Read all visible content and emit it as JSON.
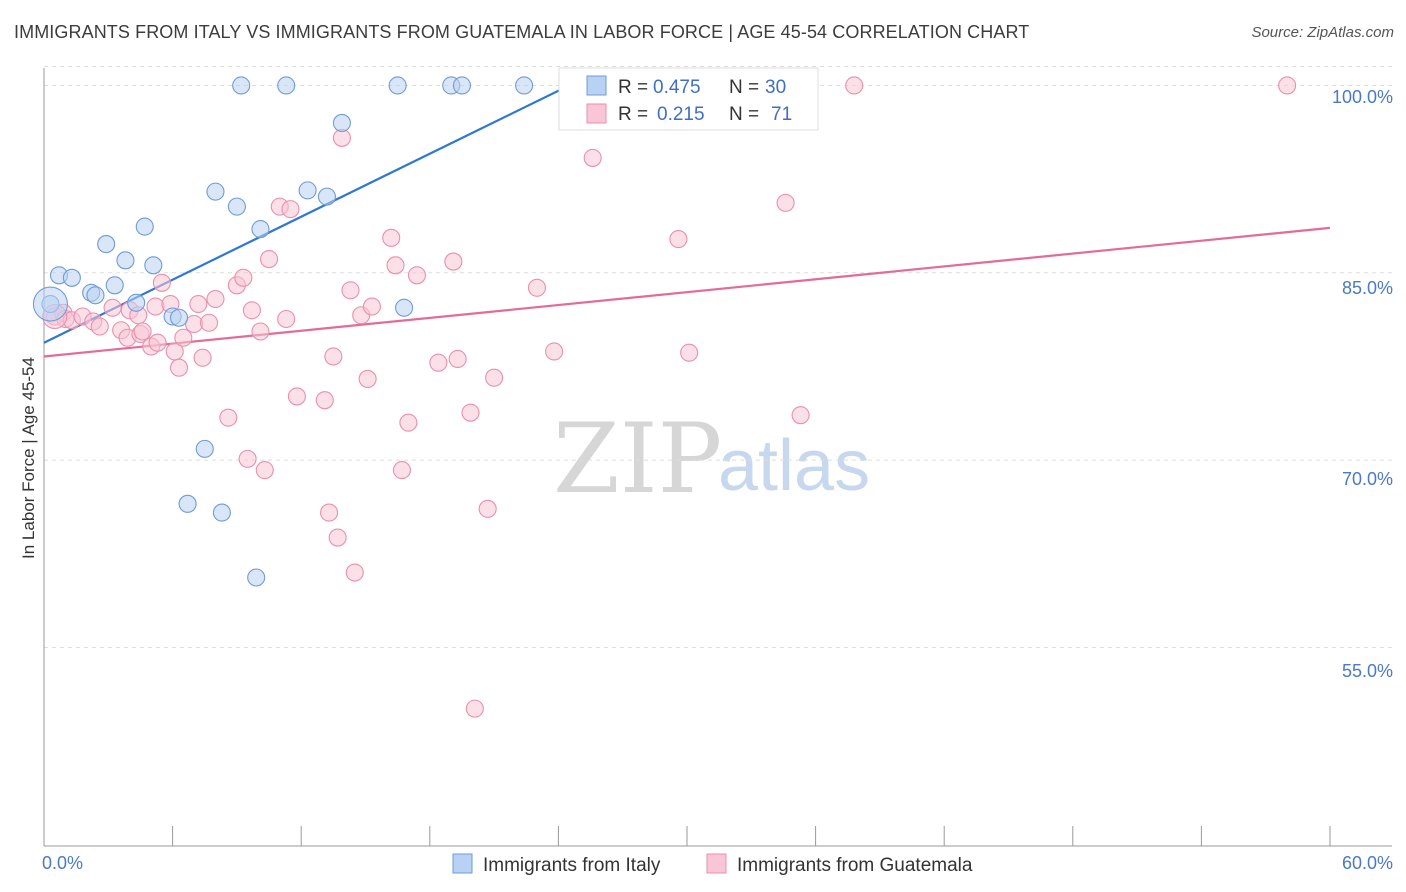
{
  "title": "IMMIGRANTS FROM ITALY VS IMMIGRANTS FROM GUATEMALA IN LABOR FORCE | AGE 45-54 CORRELATION CHART",
  "source": "Source: ZipAtlas.com",
  "watermark": {
    "zip": "ZIP",
    "atlas": "atlas"
  },
  "colors": {
    "italy_fill": "#b9d1f3",
    "italy_stroke": "#6f9bd8",
    "italy_line": "#2f78d0",
    "guatemala_fill": "#f8c6d6",
    "guatemala_stroke": "#ea8fae",
    "guatemala_line": "#e46a98",
    "grid": "#dddddd",
    "axis": "#999999"
  },
  "legend": {
    "rows": [
      {
        "r_label": "R =",
        "r_value": "0.475",
        "n_label": "N =",
        "n_value": "30"
      },
      {
        "r_label": "R =",
        "r_value": "0.215",
        "n_label": "N =",
        "n_value": "71"
      }
    ]
  },
  "chart_data": {
    "type": "scatter",
    "title": "IMMIGRANTS FROM ITALY VS IMMIGRANTS FROM GUATEMALA IN LABOR FORCE | AGE 45-54 CORRELATION CHART",
    "xlabel": "",
    "ylabel": "In Labor Force | Age 45-54",
    "xlim": [
      0,
      60
    ],
    "ylim": [
      39.1,
      101.4
    ],
    "x_tick_labels": [
      "0.0%",
      "60.0%"
    ],
    "y_ticks": [
      55,
      70,
      85,
      100
    ],
    "y_tick_labels": [
      "55.0%",
      "70.0%",
      "85.0%",
      "100.0%"
    ],
    "grid": true,
    "legend_position": "top-center",
    "series": [
      {
        "name": "Immigrants from Italy",
        "R": 0.475,
        "N": 30,
        "trend": {
          "x0": 0.0,
          "y0": 79.4,
          "x1": 24.5,
          "y1": 100.0
        },
        "points": [
          [
            0.3,
            82.5
          ],
          [
            0.7,
            84.8
          ],
          [
            1.3,
            84.6
          ],
          [
            2.2,
            83.4
          ],
          [
            2.4,
            83.2
          ],
          [
            2.9,
            87.3
          ],
          [
            3.3,
            84.0
          ],
          [
            3.8,
            86.0
          ],
          [
            4.3,
            82.6
          ],
          [
            4.7,
            88.7
          ],
          [
            5.1,
            85.6
          ],
          [
            6.0,
            81.5
          ],
          [
            6.3,
            81.4
          ],
          [
            7.5,
            70.9
          ],
          [
            6.7,
            66.5
          ],
          [
            8.0,
            91.5
          ],
          [
            8.3,
            65.8
          ],
          [
            9.0,
            90.3
          ],
          [
            9.2,
            100.0
          ],
          [
            9.9,
            60.6
          ],
          [
            10.1,
            88.5
          ],
          [
            11.3,
            100.0
          ],
          [
            12.3,
            91.6
          ],
          [
            13.2,
            91.1
          ],
          [
            13.9,
            97.0
          ],
          [
            16.5,
            100.0
          ],
          [
            16.8,
            82.2
          ],
          [
            19.0,
            100.0
          ],
          [
            19.5,
            100.0
          ],
          [
            22.4,
            100.0
          ]
        ]
      },
      {
        "name": "Immigrants from Guatemala",
        "R": 0.215,
        "N": 71,
        "trend": {
          "x0": 0.0,
          "y0": 78.3,
          "x1": 60.0,
          "y1": 88.6
        },
        "points": [
          [
            0.5,
            81.5
          ],
          [
            0.9,
            81.8
          ],
          [
            1.0,
            81.3
          ],
          [
            1.3,
            81.2
          ],
          [
            1.8,
            81.5
          ],
          [
            2.3,
            81.1
          ],
          [
            2.6,
            80.7
          ],
          [
            3.2,
            82.2
          ],
          [
            3.6,
            80.4
          ],
          [
            3.9,
            79.8
          ],
          [
            4.0,
            82.0
          ],
          [
            4.4,
            81.6
          ],
          [
            4.5,
            80.1
          ],
          [
            4.6,
            80.3
          ],
          [
            5.0,
            79.1
          ],
          [
            5.2,
            82.3
          ],
          [
            5.3,
            79.4
          ],
          [
            5.5,
            84.2
          ],
          [
            5.9,
            82.5
          ],
          [
            6.1,
            78.7
          ],
          [
            6.3,
            77.4
          ],
          [
            6.5,
            79.8
          ],
          [
            7.0,
            80.9
          ],
          [
            7.2,
            82.5
          ],
          [
            7.4,
            78.2
          ],
          [
            7.7,
            81.0
          ],
          [
            8.0,
            82.9
          ],
          [
            8.6,
            73.4
          ],
          [
            9.0,
            84.0
          ],
          [
            9.3,
            84.6
          ],
          [
            9.5,
            70.1
          ],
          [
            9.7,
            82.0
          ],
          [
            10.1,
            80.3
          ],
          [
            10.3,
            69.2
          ],
          [
            10.5,
            86.1
          ],
          [
            11.0,
            90.3
          ],
          [
            11.3,
            81.3
          ],
          [
            11.5,
            90.1
          ],
          [
            11.8,
            75.1
          ],
          [
            13.1,
            74.8
          ],
          [
            13.3,
            65.8
          ],
          [
            13.5,
            78.3
          ],
          [
            13.7,
            63.8
          ],
          [
            13.9,
            95.8
          ],
          [
            14.3,
            83.6
          ],
          [
            14.5,
            61.0
          ],
          [
            14.8,
            81.6
          ],
          [
            15.1,
            76.5
          ],
          [
            15.3,
            82.3
          ],
          [
            16.2,
            87.8
          ],
          [
            16.4,
            85.6
          ],
          [
            16.7,
            69.2
          ],
          [
            17.0,
            73.0
          ],
          [
            17.4,
            84.8
          ],
          [
            18.4,
            77.8
          ],
          [
            19.1,
            85.9
          ],
          [
            19.3,
            78.1
          ],
          [
            19.9,
            73.8
          ],
          [
            20.1,
            50.1
          ],
          [
            20.7,
            66.1
          ],
          [
            21.0,
            76.6
          ],
          [
            23.0,
            83.8
          ],
          [
            23.8,
            78.7
          ],
          [
            25.6,
            94.2
          ],
          [
            29.6,
            87.7
          ],
          [
            30.1,
            78.6
          ],
          [
            31.2,
            100.0
          ],
          [
            34.6,
            90.6
          ],
          [
            35.3,
            73.6
          ],
          [
            37.8,
            100.0
          ],
          [
            58.0,
            100.0
          ]
        ]
      }
    ]
  },
  "bottom_legend": [
    "Immigrants from Italy",
    "Immigrants from Guatemala"
  ]
}
